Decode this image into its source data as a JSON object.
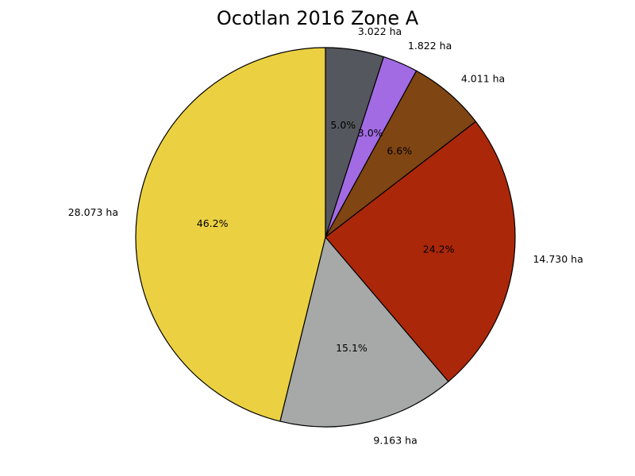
{
  "chart_data": {
    "type": "pie",
    "title": "Ocotlan 2016 Zone A",
    "unit": "ha",
    "start_angle_deg": 90,
    "direction": "clockwise",
    "legend": "none",
    "slices": [
      {
        "value": 3.022,
        "label": "3.022 ha",
        "pct": "5.0%",
        "color": "#54575d"
      },
      {
        "value": 1.822,
        "label": "1.822 ha",
        "pct": "3.0%",
        "color": "#a26be3"
      },
      {
        "value": 4.011,
        "label": "4.011 ha",
        "pct": "6.6%",
        "color": "#7f4512"
      },
      {
        "value": 14.73,
        "label": "14.730 ha",
        "pct": "24.2%",
        "color": "#ab2709"
      },
      {
        "value": 9.163,
        "label": "9.163 ha",
        "pct": "15.1%",
        "color": "#a7a9a8"
      },
      {
        "value": 28.073,
        "label": "28.073 ha",
        "pct": "46.2%",
        "color": "#ebd142"
      }
    ]
  }
}
